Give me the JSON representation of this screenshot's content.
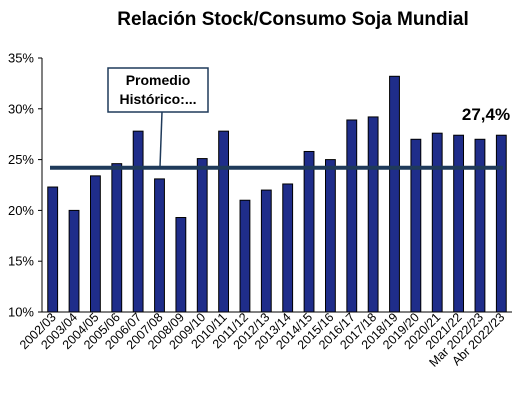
{
  "chart_data": {
    "type": "bar",
    "title": "Relación Stock/Consumo Soja Mundial",
    "categories": [
      "2002/03",
      "2003/04",
      "2004/05",
      "2005/06",
      "2006/07",
      "2007/08",
      "2008/09",
      "2009/10",
      "2010/11",
      "2011/12",
      "2012/13",
      "2013/14",
      "2014/15",
      "2015/16",
      "2016/17",
      "2017/18",
      "2018/19",
      "2019/20",
      "2020/21",
      "2021/22",
      "Mar 2022/23",
      "Abr 2022/23"
    ],
    "values": [
      22.3,
      20.0,
      23.4,
      24.6,
      27.8,
      23.1,
      19.3,
      25.1,
      27.8,
      21.0,
      22.0,
      22.6,
      25.8,
      25.0,
      28.9,
      29.2,
      33.2,
      27.0,
      27.6,
      27.4,
      27.0,
      27.4
    ],
    "ylim": [
      10,
      35
    ],
    "yticks": [
      10,
      15,
      20,
      25,
      30,
      35
    ],
    "ytick_labels": [
      "10%",
      "15%",
      "20%",
      "25%",
      "30%",
      "35%"
    ],
    "reference_line": {
      "value": 24.2,
      "label": "Promedio Histórico:..."
    },
    "last_value_label": "27,4%",
    "grid": false,
    "legend": "none",
    "colors": {
      "bar_fill": "#1f2d8a",
      "bar_edge": "#000000",
      "reference_line": "#1f3a5a"
    }
  }
}
